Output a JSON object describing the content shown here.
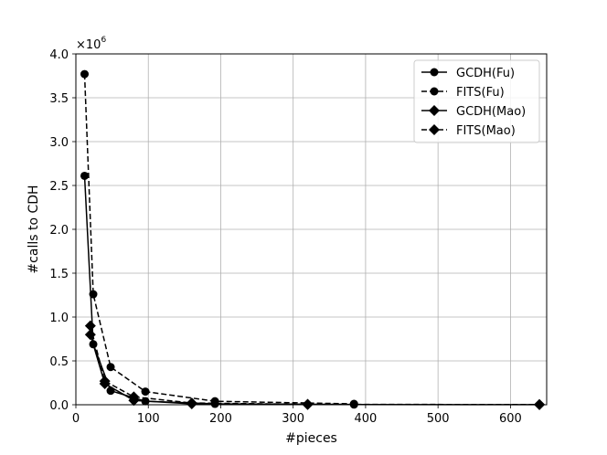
{
  "chart_data": {
    "type": "line",
    "title": "",
    "xlabel": "#pieces",
    "ylabel": "#calls to CDH",
    "y_multiplier_label": "×10",
    "y_multiplier_exp": "6",
    "xlim": [
      0,
      650
    ],
    "ylim": [
      0,
      4.0
    ],
    "x_ticks": [
      0,
      100,
      200,
      300,
      400,
      500,
      600
    ],
    "x_tick_labels": [
      "0",
      "100",
      "200",
      "300",
      "400",
      "500",
      "600"
    ],
    "y_ticks": [
      0,
      0.5,
      1.0,
      1.5,
      2.0,
      2.5,
      3.0,
      3.5,
      4.0
    ],
    "y_tick_labels": [
      "0.0",
      "0.5",
      "1.0",
      "1.5",
      "2.0",
      "2.5",
      "3.0",
      "3.5",
      "4.0"
    ],
    "grid": true,
    "legend_position": "top-right",
    "series": [
      {
        "name": "GCDH(Fu)",
        "line": "solid",
        "marker": "circle",
        "x": [
          12,
          24,
          48,
          96,
          192,
          384
        ],
        "y": [
          2.61,
          0.69,
          0.16,
          0.04,
          0.01,
          0.002
        ]
      },
      {
        "name": "FITS(Fu)",
        "line": "dashed",
        "marker": "circle",
        "x": [
          12,
          24,
          48,
          96,
          192,
          384
        ],
        "y": [
          3.77,
          1.26,
          0.43,
          0.15,
          0.04,
          0.01
        ]
      },
      {
        "name": "GCDH(Mao)",
        "line": "solid",
        "marker": "diamond",
        "x": [
          20,
          40,
          80,
          160,
          320,
          640
        ],
        "y": [
          0.8,
          0.24,
          0.05,
          0.01,
          0.003,
          0.001
        ]
      },
      {
        "name": "FITS(Mao)",
        "line": "dashed",
        "marker": "diamond",
        "x": [
          20,
          40,
          80,
          160,
          320,
          640
        ],
        "y": [
          0.9,
          0.27,
          0.09,
          0.02,
          0.005,
          0.002
        ]
      }
    ]
  }
}
